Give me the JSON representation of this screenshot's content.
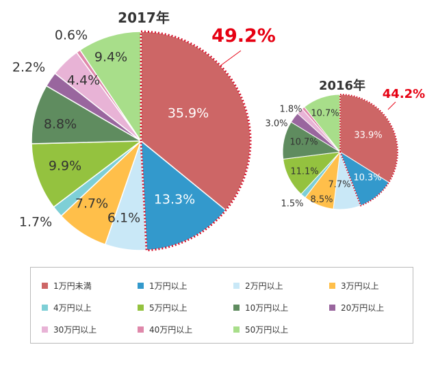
{
  "chart_data": [
    {
      "type": "pie",
      "title": "2017年",
      "highlight_label": "49.2%",
      "categories": [
        "1万円未満",
        "1万円以上",
        "2万円以上",
        "3万円以上",
        "4万円以上",
        "5万円以上",
        "10万円以上",
        "20万円以上",
        "30万円以上",
        "40万円以上",
        "50万円以上"
      ],
      "values": [
        35.9,
        13.3,
        6.1,
        7.7,
        1.7,
        9.9,
        8.8,
        2.2,
        4.4,
        0.6,
        9.4
      ],
      "labels": [
        "35.9%",
        "13.3%",
        "6.1%",
        "7.7%",
        "1.7%",
        "9.9%",
        "8.8%",
        "2.2%",
        "4.4%",
        "0.6%",
        "9.4%"
      ]
    },
    {
      "type": "pie",
      "title": "2016年",
      "highlight_label": "44.2%",
      "categories": [
        "1万円未満",
        "1万円以上",
        "2万円以上",
        "3万円以上",
        "4万円以上",
        "5万円以上",
        "10万円以上",
        "20万円以上",
        "30万円以上",
        "40万円以上",
        "50万円以上"
      ],
      "values": [
        33.9,
        10.3,
        7.7,
        8.5,
        1.5,
        11.1,
        10.7,
        3.0,
        1.8,
        0.8,
        10.7
      ],
      "labels": [
        "33.9%",
        "10.3%",
        "7.7%",
        "8.5%",
        "1.5%",
        "11.1%",
        "10.7%",
        "3.0%",
        "1.8%",
        "",
        "10.7%"
      ]
    }
  ],
  "legend": {
    "items": [
      "1万円未満",
      "1万円以上",
      "2万円以上",
      "3万円以上",
      "4万円以上",
      "5万円以上",
      "10万円以上",
      "20万円以上",
      "30万円以上",
      "40万円以上",
      "50万円以上"
    ]
  },
  "colors": {
    "slices": [
      "#cd6666",
      "#3399cc",
      "#c9e8f7",
      "#ffbf4a",
      "#7ecfd6",
      "#94c23f",
      "#5f8c5f",
      "#99669e",
      "#e8b3d6",
      "#df88aa",
      "#a8de8a"
    ],
    "highlight": "#e60012",
    "dotted_border": "#d4112a",
    "slice_border": "#ffffff"
  }
}
